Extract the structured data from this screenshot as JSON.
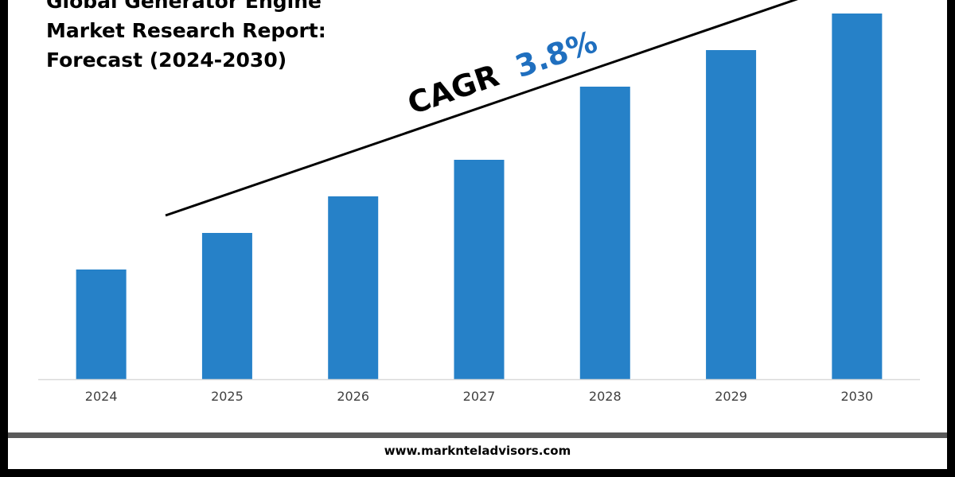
{
  "title_lines": [
    "Global Generator Engine",
    "Market Research Report:",
    "Forecast (2024-2030)"
  ],
  "cagr": {
    "prefix": "CAGR",
    "value": "3.8%",
    "prefix_color": "#000000",
    "value_color": "#1f6fbf"
  },
  "footer": {
    "url": "www.marknteladvisors.com"
  },
  "colors": {
    "bar": "#2681c8",
    "axis": "#d9d9d9",
    "trend_line": "#000000"
  },
  "chart_data": {
    "type": "bar",
    "categories": [
      "2024",
      "2025",
      "2026",
      "2027",
      "2028",
      "2029",
      "2030"
    ],
    "values": [
      30,
      40,
      50,
      60,
      80,
      90,
      100
    ],
    "ylim": [
      0,
      100
    ],
    "grid": false,
    "legend": "none",
    "annotation": "CAGR 3.8%"
  }
}
